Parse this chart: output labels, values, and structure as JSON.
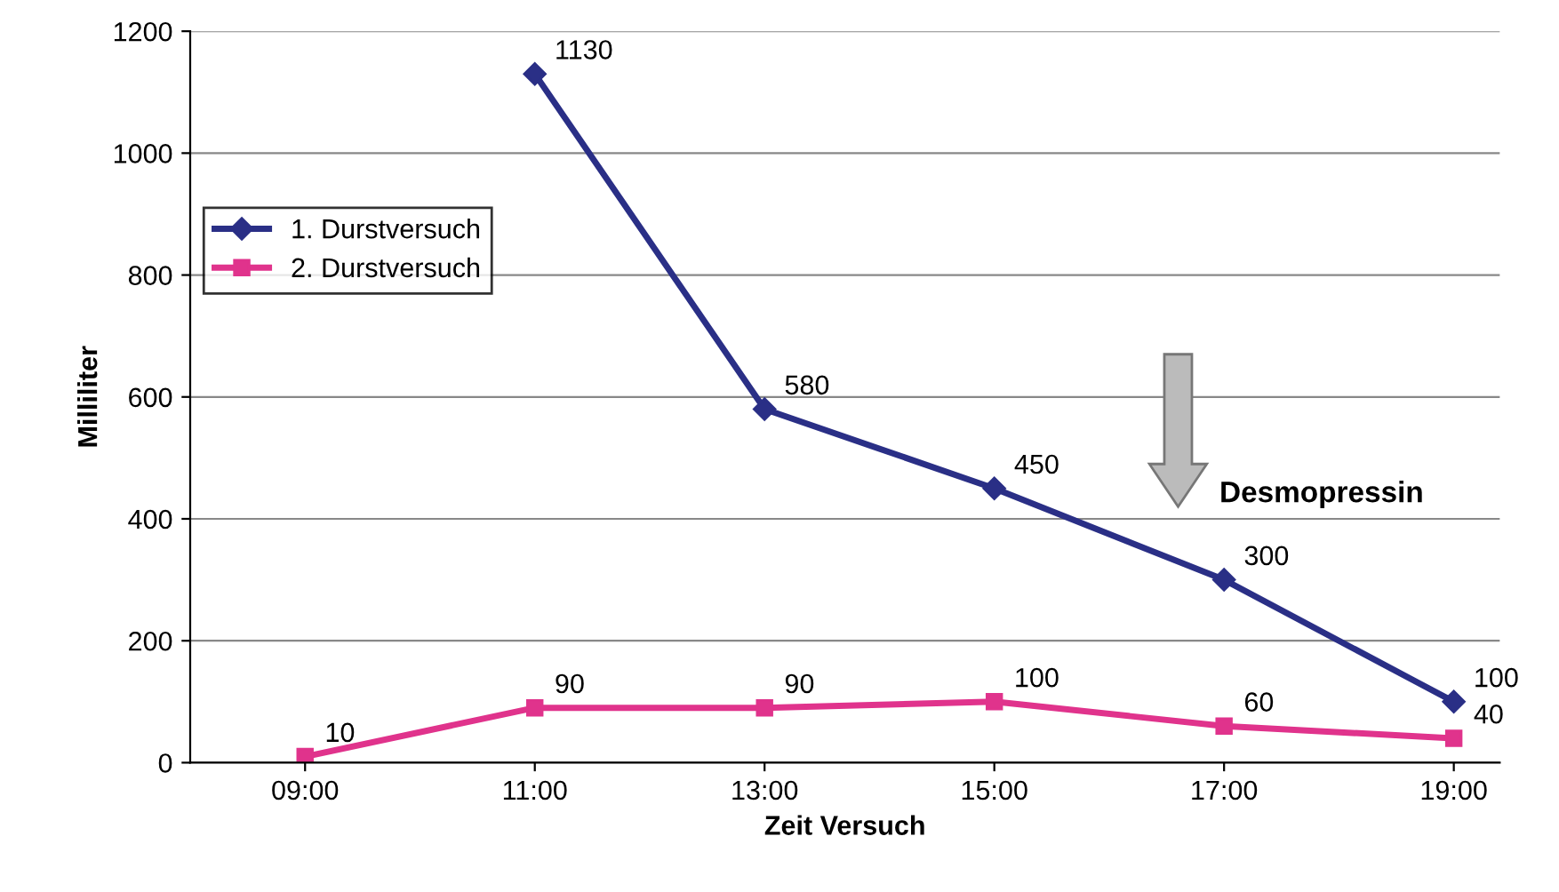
{
  "chart_data": {
    "type": "line",
    "xlabel": "Zeit Versuch",
    "ylabel": "Milliliter",
    "categories": [
      "09:00",
      "11:00",
      "13:00",
      "15:00",
      "17:00",
      "19:00"
    ],
    "series": [
      {
        "name": "1. Durstversuch",
        "color": "#2a2f86",
        "marker": "diamond",
        "values": [
          null,
          1130,
          580,
          450,
          300,
          100
        ]
      },
      {
        "name": "2. Durstversuch",
        "color": "#e0338c",
        "marker": "square",
        "values": [
          10,
          90,
          90,
          100,
          60,
          40
        ]
      }
    ],
    "ylim": [
      0,
      1200
    ],
    "yticks": [
      0,
      200,
      400,
      600,
      800,
      1000,
      1200
    ],
    "grid": "y",
    "legend": "left",
    "data_labels": true,
    "annotations": [
      "Desmopressin"
    ]
  }
}
